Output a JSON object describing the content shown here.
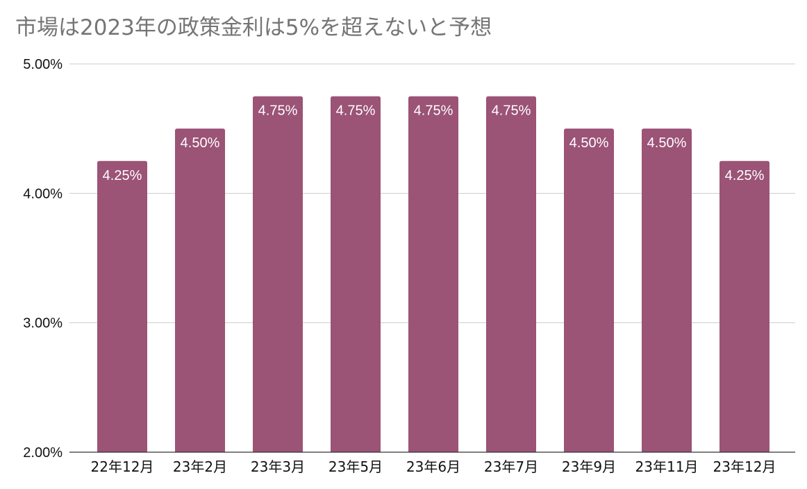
{
  "chart_data": {
    "type": "bar",
    "title": "市場は2023年の政策金利は5%を超えないと予想",
    "categories": [
      "22年12月",
      "23年2月",
      "23年3月",
      "23年5月",
      "23年6月",
      "23年7月",
      "23年9月",
      "23年11月",
      "23年12月"
    ],
    "values": [
      4.25,
      4.5,
      4.75,
      4.75,
      4.75,
      4.75,
      4.5,
      4.5,
      4.25
    ],
    "data_labels": [
      "4.25%",
      "4.50%",
      "4.75%",
      "4.75%",
      "4.75%",
      "4.75%",
      "4.50%",
      "4.50%",
      "4.25%"
    ],
    "ylim": [
      2,
      5
    ],
    "yticks": [
      2,
      3,
      4,
      5
    ],
    "ytick_labels": [
      "2.00%",
      "3.00%",
      "4.00%",
      "5.00%"
    ],
    "xlabel": "",
    "ylabel": "",
    "grid": true,
    "legend": "none",
    "colors": {
      "bar": "#9b5376",
      "gridline": "#cccccc",
      "baseline": "#333333",
      "title": "#757575",
      "data_label": "#ffffff"
    }
  }
}
